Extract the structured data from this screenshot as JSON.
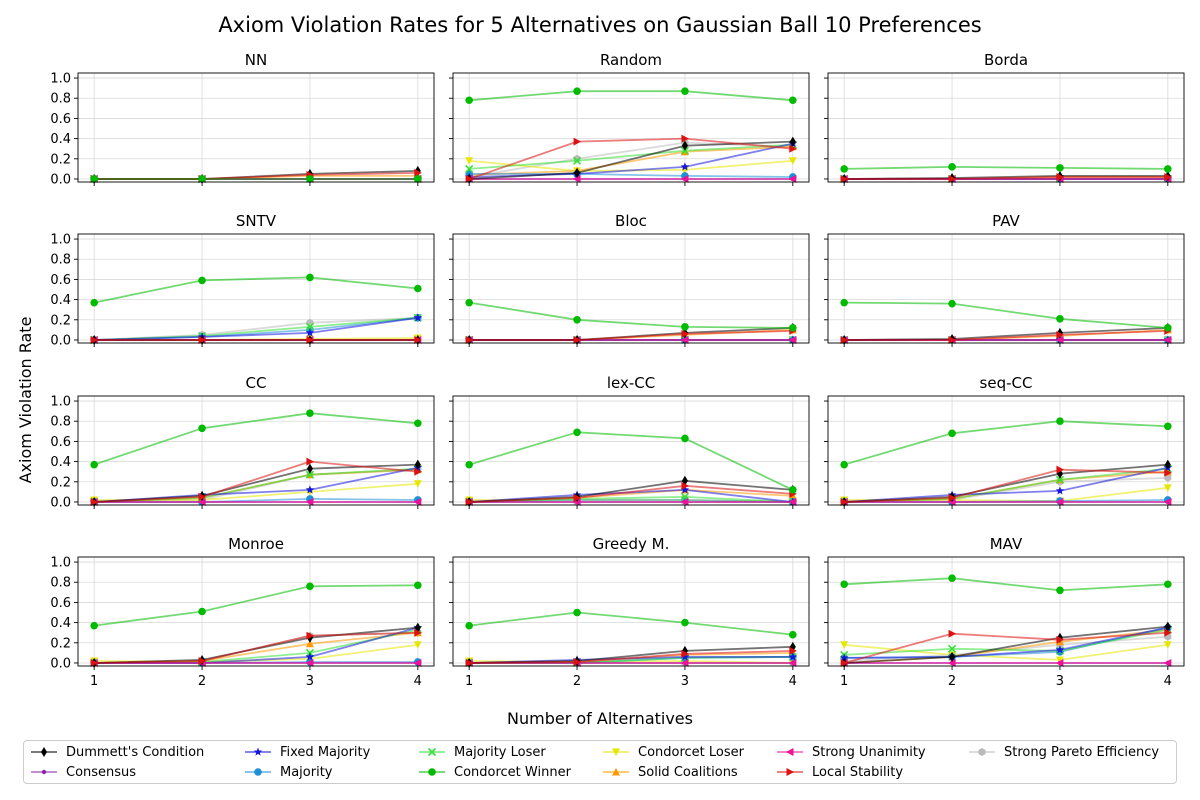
{
  "figure": {
    "title": "Axiom Violation Rates for 5 Alternatives on Gaussian Ball 10 Preferences",
    "xlabel": "Number of Alternatives",
    "ylabel": "Axiom Violation Rate",
    "x_ticks": [
      "1",
      "2",
      "3",
      "4"
    ],
    "y_ticks": [
      "0.0",
      "0.2",
      "0.4",
      "0.6",
      "0.8",
      "1.0"
    ]
  },
  "legend": {
    "entries": [
      {
        "key": "dummett",
        "label": "Dummett's Condition",
        "color": "#000000",
        "marker": "thin-diamond"
      },
      {
        "key": "consensus",
        "label": "Consensus",
        "color": "#8e24aa",
        "marker": "small-dot"
      },
      {
        "key": "fixed",
        "label": "Fixed Majority",
        "color": "#1515e0",
        "marker": "star"
      },
      {
        "key": "majority",
        "label": "Majority",
        "color": "#1f8fd8",
        "marker": "circle"
      },
      {
        "key": "mloser",
        "label": "Majority Loser",
        "color": "#33e033",
        "marker": "x"
      },
      {
        "key": "cwinner",
        "label": "Condorcet Winner",
        "color": "#00bb00",
        "marker": "circle"
      },
      {
        "key": "closer",
        "label": "Condorcet Loser",
        "color": "#e6e600",
        "marker": "triangle-down"
      },
      {
        "key": "solid",
        "label": "Solid Coalitions",
        "color": "#ff9900",
        "marker": "triangle-up"
      },
      {
        "key": "unanim",
        "label": "Strong Unanimity",
        "color": "#ee1199",
        "marker": "triangle-left"
      },
      {
        "key": "local",
        "label": "Local Stability",
        "color": "#dd1111",
        "marker": "triangle-right"
      },
      {
        "key": "pareto",
        "label": "Strong Pareto Efficiency",
        "color": "#bbbbbb",
        "marker": "hexagon"
      }
    ]
  },
  "chart_data": {
    "type": "line",
    "x": [
      1,
      2,
      3,
      4
    ],
    "ylim": [
      -0.03,
      1.05
    ],
    "xlim": [
      0.85,
      4.15
    ],
    "grid": true,
    "legend_position": "bottom",
    "panels": [
      {
        "title": "NN",
        "series": {
          "dummett": [
            0,
            0,
            0.05,
            0.08
          ],
          "consensus": [
            0,
            0,
            0,
            0
          ],
          "fixed": [
            0,
            0,
            0,
            0
          ],
          "majority": [
            0,
            0,
            0,
            0
          ],
          "mloser": [
            0,
            0,
            0,
            0
          ],
          "cwinner": [
            0,
            0,
            0,
            0
          ],
          "closer": [
            0,
            0,
            0,
            0
          ],
          "solid": [
            0,
            0,
            0.03,
            0.03
          ],
          "unanim": [
            0,
            0,
            0,
            0
          ],
          "local": [
            0,
            0,
            0.04,
            0.06
          ],
          "pareto": [
            0,
            0,
            0,
            0
          ]
        }
      },
      {
        "title": "Random",
        "series": {
          "dummett": [
            0,
            0.06,
            0.33,
            0.37
          ],
          "consensus": [
            0,
            0,
            0,
            0
          ],
          "fixed": [
            0.02,
            0.05,
            0.12,
            0.35
          ],
          "majority": [
            0.05,
            0.05,
            0.03,
            0.02
          ],
          "mloser": [
            0.1,
            0.18,
            0.28,
            0.34
          ],
          "cwinner": [
            0.78,
            0.87,
            0.87,
            0.78
          ],
          "closer": [
            0.18,
            0.08,
            0.09,
            0.18
          ],
          "solid": [
            0.04,
            0.08,
            0.27,
            0.32
          ],
          "unanim": [
            0,
            0,
            0,
            0
          ],
          "local": [
            0,
            0.37,
            0.4,
            0.3
          ],
          "pareto": [
            0.02,
            0.2,
            0.36,
            0.32
          ]
        }
      },
      {
        "title": "Borda",
        "series": {
          "dummett": [
            0,
            0.01,
            0.03,
            0.03
          ],
          "consensus": [
            0,
            0,
            0,
            0
          ],
          "fixed": [
            0,
            0,
            0,
            0
          ],
          "majority": [
            0,
            0,
            0,
            0
          ],
          "mloser": [
            0,
            0,
            0,
            0
          ],
          "cwinner": [
            0.1,
            0.12,
            0.11,
            0.1
          ],
          "closer": [
            0,
            0,
            0,
            0
          ],
          "solid": [
            0,
            0,
            0.02,
            0.02
          ],
          "unanim": [
            0,
            0,
            0,
            0
          ],
          "local": [
            0,
            0,
            0.02,
            0.02
          ],
          "pareto": [
            0,
            0,
            0,
            0
          ]
        }
      },
      {
        "title": "SNTV",
        "series": {
          "dummett": [
            0,
            0,
            0,
            0
          ],
          "consensus": [
            0,
            0,
            0,
            0
          ],
          "fixed": [
            0,
            0.03,
            0.07,
            0.22
          ],
          "majority": [
            0,
            0.03,
            0.1,
            0.22
          ],
          "mloser": [
            0,
            0.04,
            0.13,
            0.22
          ],
          "cwinner": [
            0.37,
            0.59,
            0.62,
            0.51
          ],
          "closer": [
            0,
            0,
            0.01,
            0.02
          ],
          "solid": [
            0,
            0,
            0,
            0
          ],
          "unanim": [
            0,
            0,
            0,
            0
          ],
          "local": [
            0,
            0,
            0,
            0
          ],
          "pareto": [
            0,
            0.05,
            0.17,
            0.22
          ]
        }
      },
      {
        "title": "Bloc",
        "series": {
          "dummett": [
            0,
            0,
            0.07,
            0.12
          ],
          "consensus": [
            0,
            0,
            0,
            0
          ],
          "fixed": [
            0,
            0,
            0,
            0
          ],
          "majority": [
            0,
            0,
            0,
            0
          ],
          "mloser": [
            0,
            0,
            0,
            0
          ],
          "cwinner": [
            0.37,
            0.2,
            0.13,
            0.12
          ],
          "closer": [
            0,
            0,
            0,
            0
          ],
          "solid": [
            0,
            0,
            0.05,
            0.1
          ],
          "unanim": [
            0,
            0,
            0,
            0
          ],
          "local": [
            0,
            0,
            0.06,
            0.09
          ],
          "pareto": [
            0,
            0,
            0,
            0
          ]
        }
      },
      {
        "title": "PAV",
        "series": {
          "dummett": [
            0,
            0.01,
            0.07,
            0.12
          ],
          "consensus": [
            0,
            0,
            0,
            0
          ],
          "fixed": [
            0,
            0,
            0,
            0
          ],
          "majority": [
            0,
            0,
            0,
            0
          ],
          "mloser": [
            0,
            0,
            0,
            0
          ],
          "cwinner": [
            0.37,
            0.36,
            0.21,
            0.12
          ],
          "closer": [
            0,
            0,
            0,
            0
          ],
          "solid": [
            0,
            0,
            0.04,
            0.1
          ],
          "unanim": [
            0,
            0,
            0,
            0
          ],
          "local": [
            0,
            0,
            0.05,
            0.09
          ],
          "pareto": [
            0,
            0,
            0,
            0
          ]
        }
      },
      {
        "title": "CC",
        "series": {
          "dummett": [
            0,
            0.06,
            0.33,
            0.37
          ],
          "consensus": [
            0,
            0,
            0,
            0
          ],
          "fixed": [
            0,
            0.07,
            0.12,
            0.34
          ],
          "majority": [
            0,
            0,
            0.03,
            0.02
          ],
          "mloser": [
            0,
            0.04,
            0.27,
            0.33
          ],
          "cwinner": [
            0.37,
            0.73,
            0.88,
            0.78
          ],
          "closer": [
            0.02,
            0.02,
            0.1,
            0.18
          ],
          "solid": [
            0,
            0.04,
            0.27,
            0.32
          ],
          "unanim": [
            0,
            0,
            0,
            0
          ],
          "local": [
            0,
            0.05,
            0.4,
            0.3
          ],
          "pareto": [
            0,
            0.02,
            0.27,
            0.32
          ]
        }
      },
      {
        "title": "lex-CC",
        "series": {
          "dummett": [
            0,
            0.05,
            0.21,
            0.12
          ],
          "consensus": [
            0,
            0,
            0,
            0
          ],
          "fixed": [
            0,
            0.07,
            0.12,
            0
          ],
          "majority": [
            0,
            0.02,
            0.02,
            0
          ],
          "mloser": [
            0,
            0.03,
            0.05,
            0
          ],
          "cwinner": [
            0.37,
            0.69,
            0.63,
            0.12
          ],
          "closer": [
            0.02,
            0.02,
            0.02,
            0
          ],
          "solid": [
            0,
            0.04,
            0.12,
            0.06
          ],
          "unanim": [
            0,
            0,
            0,
            0
          ],
          "local": [
            0,
            0.04,
            0.16,
            0.08
          ],
          "pareto": [
            0,
            0,
            0,
            0
          ]
        }
      },
      {
        "title": "seq-CC",
        "series": {
          "dummett": [
            0,
            0.05,
            0.28,
            0.37
          ],
          "consensus": [
            0,
            0,
            0,
            0
          ],
          "fixed": [
            0,
            0.07,
            0.11,
            0.34
          ],
          "majority": [
            0,
            0,
            0.01,
            0.02
          ],
          "mloser": [
            0,
            0.03,
            0.22,
            0.33
          ],
          "cwinner": [
            0.37,
            0.68,
            0.8,
            0.75
          ],
          "closer": [
            0.02,
            0.02,
            0.01,
            0.14
          ],
          "solid": [
            0,
            0.03,
            0.22,
            0.3
          ],
          "unanim": [
            0,
            0,
            0,
            0
          ],
          "local": [
            0,
            0.04,
            0.32,
            0.29
          ],
          "pareto": [
            0,
            0.02,
            0.2,
            0.24
          ]
        }
      },
      {
        "title": "Monroe",
        "series": {
          "dummett": [
            0,
            0.03,
            0.25,
            0.35
          ],
          "consensus": [
            0,
            0,
            0,
            0
          ],
          "fixed": [
            0,
            0,
            0.06,
            0.35
          ],
          "majority": [
            0,
            0,
            0.01,
            0.01
          ],
          "mloser": [
            0,
            0.01,
            0.1,
            0.33
          ],
          "cwinner": [
            0.37,
            0.51,
            0.76,
            0.77
          ],
          "closer": [
            0.02,
            0.01,
            0.04,
            0.18
          ],
          "solid": [
            0,
            0.02,
            0.19,
            0.3
          ],
          "unanim": [
            0,
            0,
            0,
            0
          ],
          "local": [
            0,
            0.02,
            0.27,
            0.3
          ],
          "pareto": [
            0,
            0.02,
            0.27,
            0.3
          ]
        }
      },
      {
        "title": "Greedy M.",
        "series": {
          "dummett": [
            0,
            0.02,
            0.12,
            0.16
          ],
          "consensus": [
            0,
            0,
            0,
            0
          ],
          "fixed": [
            0,
            0.03,
            0.06,
            0.06
          ],
          "majority": [
            0,
            0,
            0.05,
            0.06
          ],
          "mloser": [
            0,
            0,
            0.05,
            0.06
          ],
          "cwinner": [
            0.37,
            0.5,
            0.4,
            0.28
          ],
          "closer": [
            0.02,
            0.01,
            0.02,
            0
          ],
          "solid": [
            0,
            0.01,
            0.08,
            0.1
          ],
          "unanim": [
            0,
            0,
            0,
            0
          ],
          "local": [
            0,
            0.01,
            0.09,
            0.12
          ],
          "pareto": [
            0,
            0,
            0,
            0
          ]
        }
      },
      {
        "title": "MAV",
        "series": {
          "dummett": [
            0,
            0.06,
            0.25,
            0.36
          ],
          "consensus": [
            0,
            0,
            0,
            0
          ],
          "fixed": [
            0.05,
            0.06,
            0.13,
            0.35
          ],
          "majority": [
            0.05,
            0.06,
            0.11,
            0.35
          ],
          "mloser": [
            0.08,
            0.14,
            0.12,
            0.33
          ],
          "cwinner": [
            0.78,
            0.84,
            0.72,
            0.78
          ],
          "closer": [
            0.18,
            0.08,
            0.03,
            0.18
          ],
          "solid": [
            0,
            0.06,
            0.21,
            0.33
          ],
          "unanim": [
            0,
            0,
            0,
            0
          ],
          "local": [
            0,
            0.29,
            0.23,
            0.3
          ],
          "pareto": [
            0.02,
            0.08,
            0.18,
            0.26
          ]
        }
      }
    ]
  }
}
